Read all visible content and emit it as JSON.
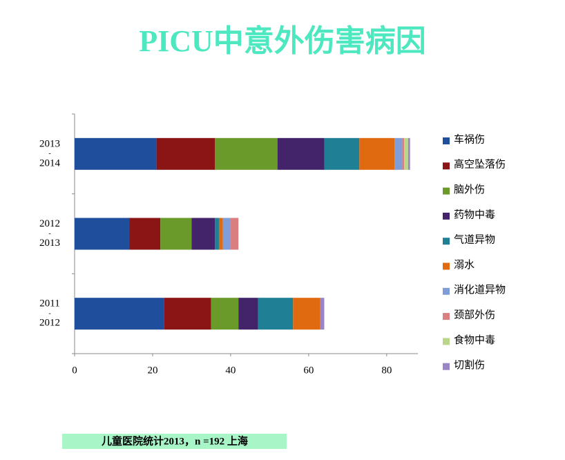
{
  "chart_data": {
    "type": "stacked-barh",
    "title": "PICU中意外伤害病因",
    "footnote": "儿童医院统计2013，n =192  上海",
    "categories": [
      [
        "2013",
        "-",
        "2014"
      ],
      [
        "2012",
        "-",
        "2013"
      ],
      [
        "2011",
        "-",
        "2012"
      ]
    ],
    "series": [
      {
        "name": "车祸伤",
        "color": "#1f4e9c",
        "values": [
          21,
          14,
          23
        ]
      },
      {
        "name": "高空坠落伤",
        "color": "#8b1414",
        "values": [
          15,
          8,
          12
        ]
      },
      {
        "name": "脑外伤",
        "color": "#6a9a2a",
        "values": [
          16,
          8,
          7
        ]
      },
      {
        "name": "药物中毒",
        "color": "#43246b",
        "values": [
          12,
          6,
          5
        ]
      },
      {
        "name": "气道异物",
        "color": "#1e7f95",
        "values": [
          9,
          1,
          9
        ]
      },
      {
        "name": "溺水",
        "color": "#e06a10",
        "values": [
          9,
          1,
          7
        ]
      },
      {
        "name": "消化道异物",
        "color": "#7f9dd6",
        "values": [
          2,
          2,
          0
        ]
      },
      {
        "name": "颈部外伤",
        "color": "#d97f7f",
        "values": [
          0.5,
          2,
          0
        ]
      },
      {
        "name": "食物中毒",
        "color": "#b9d68a",
        "values": [
          1,
          0,
          0
        ]
      },
      {
        "name": "切割伤",
        "color": "#9a86c4",
        "values": [
          0.5,
          0,
          1
        ]
      }
    ],
    "xlim": [
      0,
      88
    ],
    "xticks": [
      0,
      20,
      40,
      60,
      80
    ],
    "legend": "right"
  }
}
